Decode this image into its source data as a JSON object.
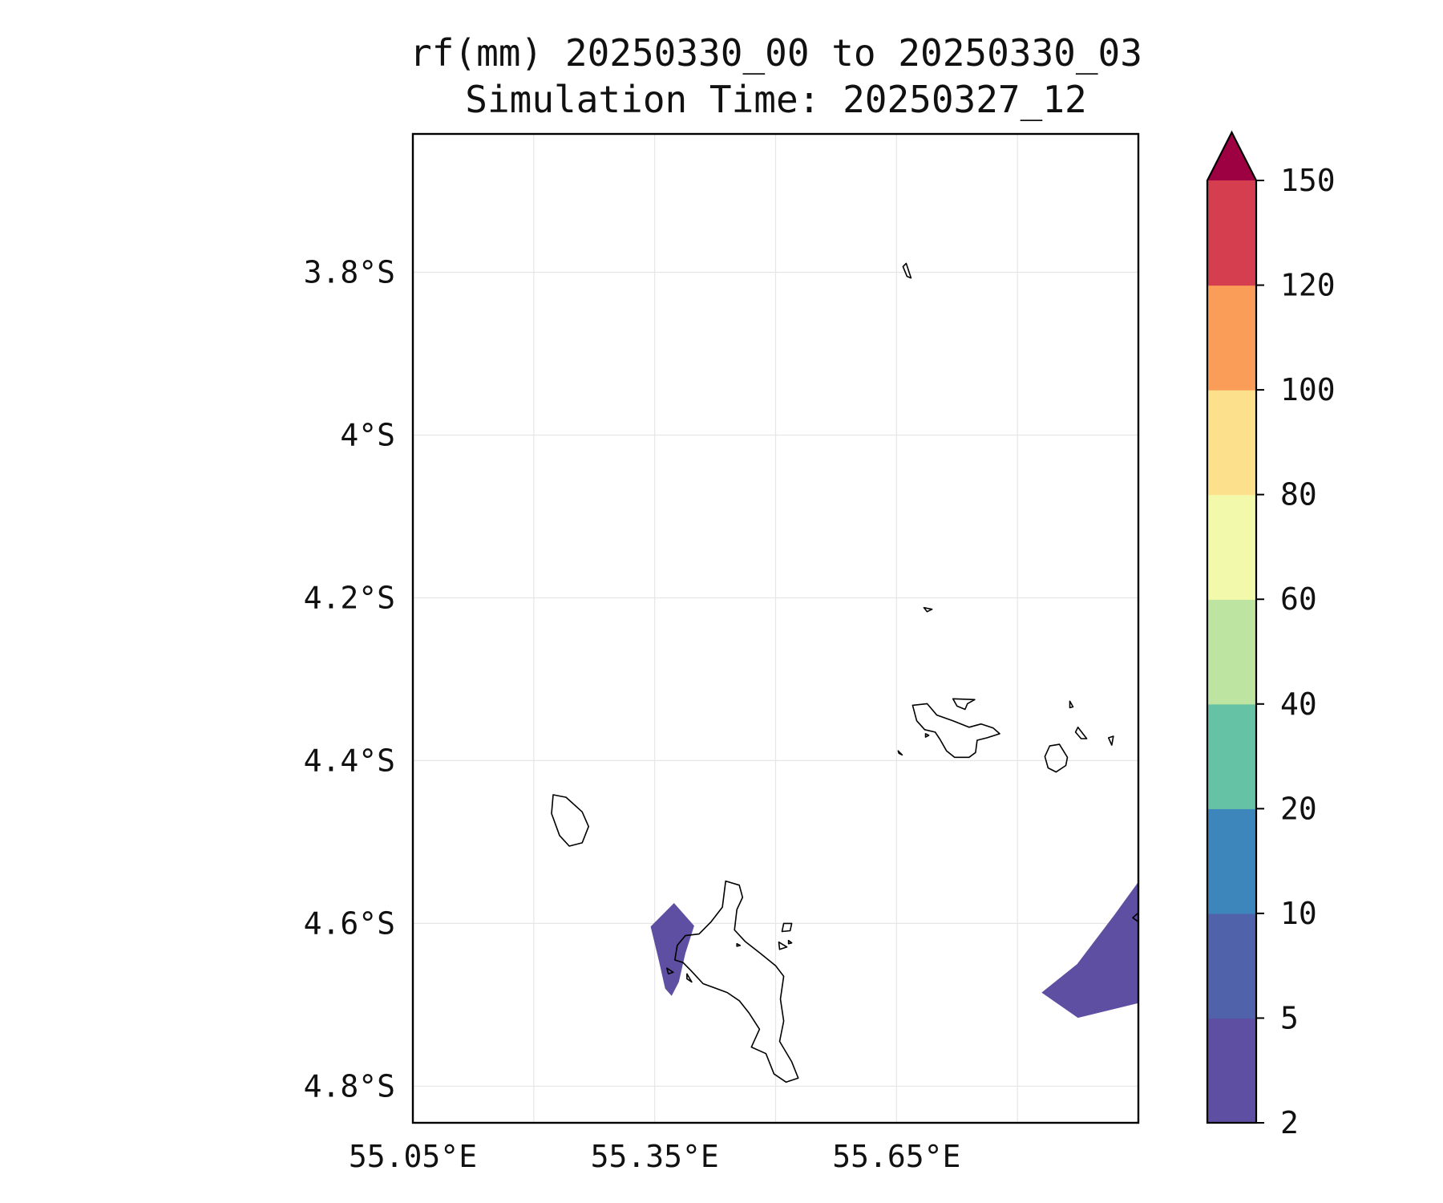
{
  "title": {
    "line1": "rf(mm) 20250330_00 to 20250330_03",
    "line2": "Simulation Time: 20250327_12"
  },
  "map": {
    "extent": {
      "lon_min": 55.05,
      "lon_max": 55.95,
      "lat_min": -4.845,
      "lat_max": -3.63
    },
    "x_ticks": [
      {
        "value": 55.05,
        "label": "55.05°E"
      },
      {
        "value": 55.35,
        "label": "55.35°E"
      },
      {
        "value": 55.65,
        "label": "55.65°E"
      }
    ],
    "y_ticks": [
      {
        "value": -3.8,
        "label": "3.8°S"
      },
      {
        "value": -4.0,
        "label": "4°S"
      },
      {
        "value": -4.2,
        "label": "4.2°S"
      },
      {
        "value": -4.4,
        "label": "4.4°S"
      },
      {
        "value": -4.6,
        "label": "4.6°S"
      },
      {
        "value": -4.8,
        "label": "4.8°S"
      }
    ],
    "grid_lon": [
      55.2,
      55.35,
      55.5,
      55.65,
      55.8
    ],
    "grid_lat": [
      -3.8,
      -4.0,
      -4.2,
      -4.4,
      -4.6,
      -4.8
    ],
    "grid": true
  },
  "colorbar": {
    "levels": [
      {
        "label": "2",
        "color": "#5e4fa2"
      },
      {
        "label": "5",
        "color": "#4f62aa"
      },
      {
        "label": "10",
        "color": "#3d86bc"
      },
      {
        "label": "20",
        "color": "#66c2a5"
      },
      {
        "label": "40",
        "color": "#bde4a0"
      },
      {
        "label": "60",
        "color": "#f3f9aa"
      },
      {
        "label": "80",
        "color": "#fde08b"
      },
      {
        "label": "100",
        "color": "#f99d58"
      },
      {
        "label": "120",
        "color": "#d53e4f"
      },
      {
        "label": "150",
        "color": "#9e0142"
      }
    ],
    "extend": "max"
  },
  "rainfall_areas": [
    {
      "band": "2-5 mm",
      "color": "#5e4fa2",
      "points": [
        [
          55.345,
          -4.604
        ],
        [
          55.374,
          -4.575
        ],
        [
          55.399,
          -4.603
        ],
        [
          55.388,
          -4.637
        ],
        [
          55.38,
          -4.672
        ],
        [
          55.371,
          -4.689
        ],
        [
          55.363,
          -4.68
        ],
        [
          55.355,
          -4.645
        ],
        [
          55.345,
          -4.604
        ]
      ]
    },
    {
      "band": "2-5 mm",
      "color": "#5e4fa2",
      "points": [
        [
          55.95,
          -4.549
        ],
        [
          55.95,
          -4.698
        ],
        [
          55.875,
          -4.716
        ],
        [
          55.83,
          -4.685
        ],
        [
          55.874,
          -4.65
        ],
        [
          55.92,
          -4.59
        ],
        [
          55.95,
          -4.549
        ]
      ]
    }
  ],
  "coastlines": [
    [
      [
        55.438,
        -4.548
      ],
      [
        55.455,
        -4.553
      ],
      [
        55.459,
        -4.568
      ],
      [
        55.452,
        -4.583
      ],
      [
        55.449,
        -4.608
      ],
      [
        55.462,
        -4.622
      ],
      [
        55.48,
        -4.636
      ],
      [
        55.5,
        -4.652
      ],
      [
        55.51,
        -4.665
      ],
      [
        55.506,
        -4.693
      ],
      [
        55.51,
        -4.72
      ],
      [
        55.505,
        -4.745
      ],
      [
        55.52,
        -4.77
      ],
      [
        55.528,
        -4.79
      ],
      [
        55.513,
        -4.795
      ],
      [
        55.498,
        -4.785
      ],
      [
        55.488,
        -4.76
      ],
      [
        55.47,
        -4.752
      ],
      [
        55.48,
        -4.73
      ],
      [
        55.467,
        -4.71
      ],
      [
        55.455,
        -4.695
      ],
      [
        55.44,
        -4.685
      ],
      [
        55.41,
        -4.674
      ],
      [
        55.395,
        -4.658
      ],
      [
        55.385,
        -4.648
      ],
      [
        55.375,
        -4.645
      ],
      [
        55.378,
        -4.627
      ],
      [
        55.388,
        -4.615
      ],
      [
        55.405,
        -4.613
      ],
      [
        55.42,
        -4.598
      ],
      [
        55.434,
        -4.58
      ],
      [
        55.438,
        -4.548
      ]
    ],
    [
      [
        55.224,
        -4.442
      ],
      [
        55.24,
        -4.445
      ],
      [
        55.26,
        -4.463
      ],
      [
        55.268,
        -4.481
      ],
      [
        55.26,
        -4.501
      ],
      [
        55.244,
        -4.505
      ],
      [
        55.232,
        -4.492
      ],
      [
        55.222,
        -4.465
      ],
      [
        55.224,
        -4.442
      ]
    ],
    [
      [
        55.67,
        -4.332
      ],
      [
        55.688,
        -4.33
      ],
      [
        55.7,
        -4.344
      ],
      [
        55.72,
        -4.351
      ],
      [
        55.74,
        -4.359
      ],
      [
        55.755,
        -4.355
      ],
      [
        55.77,
        -4.36
      ],
      [
        55.778,
        -4.367
      ],
      [
        55.762,
        -4.372
      ],
      [
        55.75,
        -4.375
      ],
      [
        55.748,
        -4.39
      ],
      [
        55.74,
        -4.396
      ],
      [
        55.722,
        -4.396
      ],
      [
        55.712,
        -4.388
      ],
      [
        55.704,
        -4.374
      ],
      [
        55.698,
        -4.365
      ],
      [
        55.685,
        -4.362
      ],
      [
        55.675,
        -4.351
      ],
      [
        55.67,
        -4.332
      ]
    ],
    [
      [
        55.72,
        -4.324
      ],
      [
        55.747,
        -4.325
      ],
      [
        55.738,
        -4.33
      ],
      [
        55.735,
        -4.337
      ],
      [
        55.725,
        -4.333
      ],
      [
        55.72,
        -4.324
      ]
    ],
    [
      [
        55.84,
        -4.382
      ],
      [
        55.852,
        -4.38
      ],
      [
        55.862,
        -4.396
      ],
      [
        55.86,
        -4.406
      ],
      [
        55.848,
        -4.414
      ],
      [
        55.838,
        -4.409
      ],
      [
        55.834,
        -4.395
      ],
      [
        55.84,
        -4.382
      ]
    ],
    [
      [
        55.684,
        -4.212
      ],
      [
        55.694,
        -4.214
      ],
      [
        55.688,
        -4.217
      ],
      [
        55.684,
        -4.212
      ]
    ],
    [
      [
        55.658,
        -3.793
      ],
      [
        55.663,
        -3.805
      ],
      [
        55.668,
        -3.807
      ],
      [
        55.662,
        -3.789
      ],
      [
        55.658,
        -3.793
      ]
    ],
    [
      [
        55.875,
        -4.359
      ],
      [
        55.882,
        -4.368
      ],
      [
        55.886,
        -4.373
      ],
      [
        55.879,
        -4.373
      ],
      [
        55.872,
        -4.365
      ],
      [
        55.875,
        -4.359
      ]
    ],
    [
      [
        55.865,
        -4.327
      ],
      [
        55.869,
        -4.334
      ],
      [
        55.865,
        -4.335
      ],
      [
        55.865,
        -4.327
      ]
    ],
    [
      [
        55.913,
        -4.372
      ],
      [
        55.919,
        -4.37
      ],
      [
        55.917,
        -4.381
      ],
      [
        55.913,
        -4.372
      ]
    ],
    [
      [
        55.686,
        -4.367
      ],
      [
        55.69,
        -4.369
      ],
      [
        55.686,
        -4.371
      ],
      [
        55.686,
        -4.367
      ]
    ],
    [
      [
        55.652,
        -4.388
      ],
      [
        55.657,
        -4.393
      ],
      [
        55.653,
        -4.391
      ],
      [
        55.652,
        -4.388
      ]
    ],
    [
      [
        55.51,
        -4.6
      ],
      [
        55.52,
        -4.6
      ],
      [
        55.518,
        -4.609
      ],
      [
        55.508,
        -4.61
      ],
      [
        55.51,
        -4.6
      ]
    ],
    [
      [
        55.504,
        -4.623
      ],
      [
        55.514,
        -4.629
      ],
      [
        55.505,
        -4.632
      ],
      [
        55.504,
        -4.623
      ]
    ],
    [
      [
        55.516,
        -4.621
      ],
      [
        55.52,
        -4.624
      ],
      [
        55.516,
        -4.625
      ],
      [
        55.516,
        -4.621
      ]
    ],
    [
      [
        55.365,
        -4.655
      ],
      [
        55.373,
        -4.66
      ],
      [
        55.367,
        -4.662
      ],
      [
        55.365,
        -4.655
      ]
    ],
    [
      [
        55.39,
        -4.662
      ],
      [
        55.396,
        -4.672
      ],
      [
        55.39,
        -4.668
      ],
      [
        55.39,
        -4.662
      ]
    ],
    [
      [
        55.452,
        -4.625
      ],
      [
        55.456,
        -4.627
      ],
      [
        55.452,
        -4.628
      ],
      [
        55.452,
        -4.625
      ]
    ],
    [
      [
        55.95,
        -4.587
      ],
      [
        55.943,
        -4.593
      ],
      [
        55.95,
        -4.598
      ],
      [
        55.95,
        -4.587
      ]
    ]
  ]
}
